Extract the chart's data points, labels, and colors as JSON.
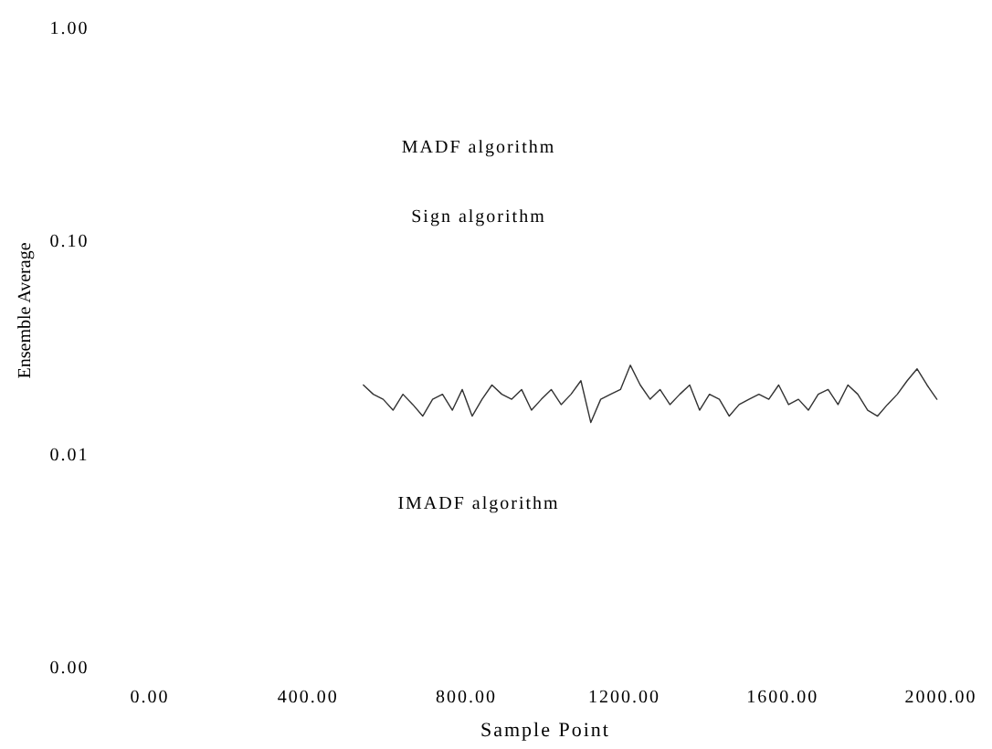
{
  "chart_data": {
    "type": "line",
    "xlabel": "Sample Point",
    "ylabel": "Ensemble Average",
    "log": "y",
    "grid": false,
    "marker": "none",
    "line_style": "solid",
    "xlim": [
      0,
      2000
    ],
    "ylim": [
      0.001,
      1
    ],
    "xticks": [
      {
        "value": 0,
        "label": "0.00"
      },
      {
        "value": 400,
        "label": "400.00"
      },
      {
        "value": 800,
        "label": "800.00"
      },
      {
        "value": 1200,
        "label": "1200.00"
      },
      {
        "value": 1600,
        "label": "1600.00"
      },
      {
        "value": 2000,
        "label": "2000.00"
      }
    ],
    "yticks": [
      {
        "value": 0.001,
        "label": "0.00"
      },
      {
        "value": 0.01,
        "label": "0.01"
      },
      {
        "value": 0.1,
        "label": "0.10"
      },
      {
        "value": 1,
        "label": "1.00"
      }
    ],
    "annotations": [
      "MADF algorithm",
      "Sign algorithm",
      "IMADF algorithm"
    ],
    "x": [
      540,
      565,
      590,
      615,
      640,
      665,
      690,
      715,
      740,
      765,
      790,
      815,
      840,
      865,
      890,
      915,
      940,
      965,
      990,
      1015,
      1040,
      1065,
      1090,
      1115,
      1140,
      1165,
      1190,
      1215,
      1240,
      1265,
      1290,
      1315,
      1340,
      1365,
      1390,
      1415,
      1440,
      1465,
      1490,
      1515,
      1540,
      1565,
      1590,
      1615,
      1640,
      1665,
      1690,
      1715,
      1740,
      1765,
      1790,
      1815,
      1840,
      1865,
      1890,
      1915,
      1940,
      1965,
      1990
    ],
    "series": [
      {
        "color": "#333333",
        "values": [
          0.021,
          0.019,
          0.018,
          0.016,
          0.019,
          0.017,
          0.015,
          0.018,
          0.019,
          0.016,
          0.02,
          0.015,
          0.018,
          0.021,
          0.019,
          0.018,
          0.02,
          0.016,
          0.018,
          0.02,
          0.017,
          0.019,
          0.022,
          0.014,
          0.018,
          0.019,
          0.02,
          0.026,
          0.021,
          0.018,
          0.02,
          0.017,
          0.019,
          0.021,
          0.016,
          0.019,
          0.018,
          0.015,
          0.017,
          0.018,
          0.019,
          0.018,
          0.021,
          0.017,
          0.018,
          0.016,
          0.019,
          0.02,
          0.017,
          0.021,
          0.019,
          0.016,
          0.015,
          0.017,
          0.019,
          0.022,
          0.025,
          0.021,
          0.018
        ]
      }
    ]
  }
}
